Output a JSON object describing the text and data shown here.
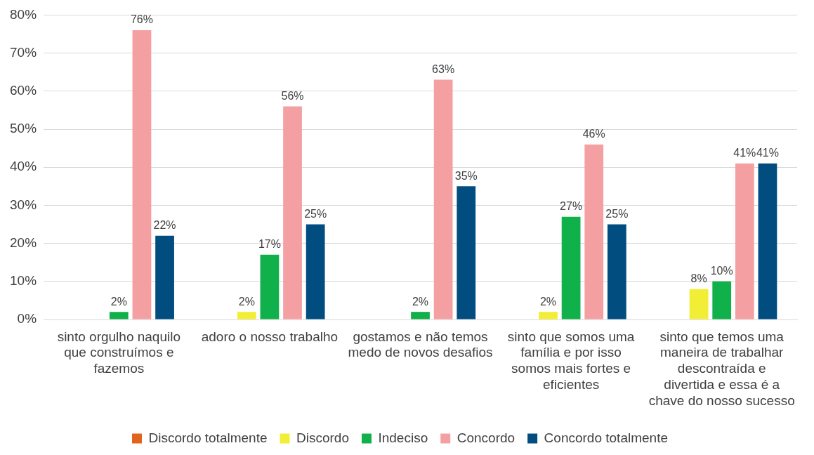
{
  "chart_data": {
    "type": "bar",
    "categories": [
      "sinto orgulho naquilo que construímos e fazemos",
      "adoro o nosso trabalho",
      "gostamos e não temos medo de novos desafios",
      "sinto que somos uma família e por isso somos mais fortes e eficientes",
      "sinto que temos uma maneira de trabalhar descontraída e divertida e essa é a chave do nosso sucesso"
    ],
    "series": [
      {
        "name": "Discordo totalmente",
        "color": "#e0641e",
        "values": [
          null,
          null,
          null,
          null,
          null
        ]
      },
      {
        "name": "Discordo",
        "color": "#f2ee36",
        "values": [
          null,
          2,
          null,
          2,
          8
        ],
        "value_labels": [
          null,
          "2%",
          null,
          "2%",
          "8%"
        ]
      },
      {
        "name": "Indeciso",
        "color": "#10b04a",
        "values": [
          2,
          17,
          2,
          27,
          10
        ],
        "value_labels": [
          "2%",
          "17%",
          "2%",
          "27%",
          "10%"
        ]
      },
      {
        "name": "Concordo",
        "color": "#f4a0a2",
        "values": [
          76,
          56,
          63,
          46,
          41
        ],
        "value_labels": [
          "76%",
          "56%",
          "63%",
          "46%",
          "41%"
        ]
      },
      {
        "name": "Concordo totalmente",
        "color": "#014d80",
        "values": [
          22,
          25,
          35,
          25,
          41
        ],
        "value_labels": [
          "22%",
          "25%",
          "35%",
          "25%",
          "41%"
        ]
      }
    ],
    "ylim": [
      0,
      80
    ],
    "yticks": [
      {
        "value": 0,
        "label": "0%"
      },
      {
        "value": 10,
        "label": "10%"
      },
      {
        "value": 20,
        "label": "20%"
      },
      {
        "value": 30,
        "label": "30%"
      },
      {
        "value": 40,
        "label": "40%"
      },
      {
        "value": 50,
        "label": "50%"
      },
      {
        "value": 60,
        "label": "60%"
      },
      {
        "value": 70,
        "label": "70%"
      },
      {
        "value": 80,
        "label": "80%"
      }
    ],
    "grid": "y",
    "legend": "bottom"
  }
}
